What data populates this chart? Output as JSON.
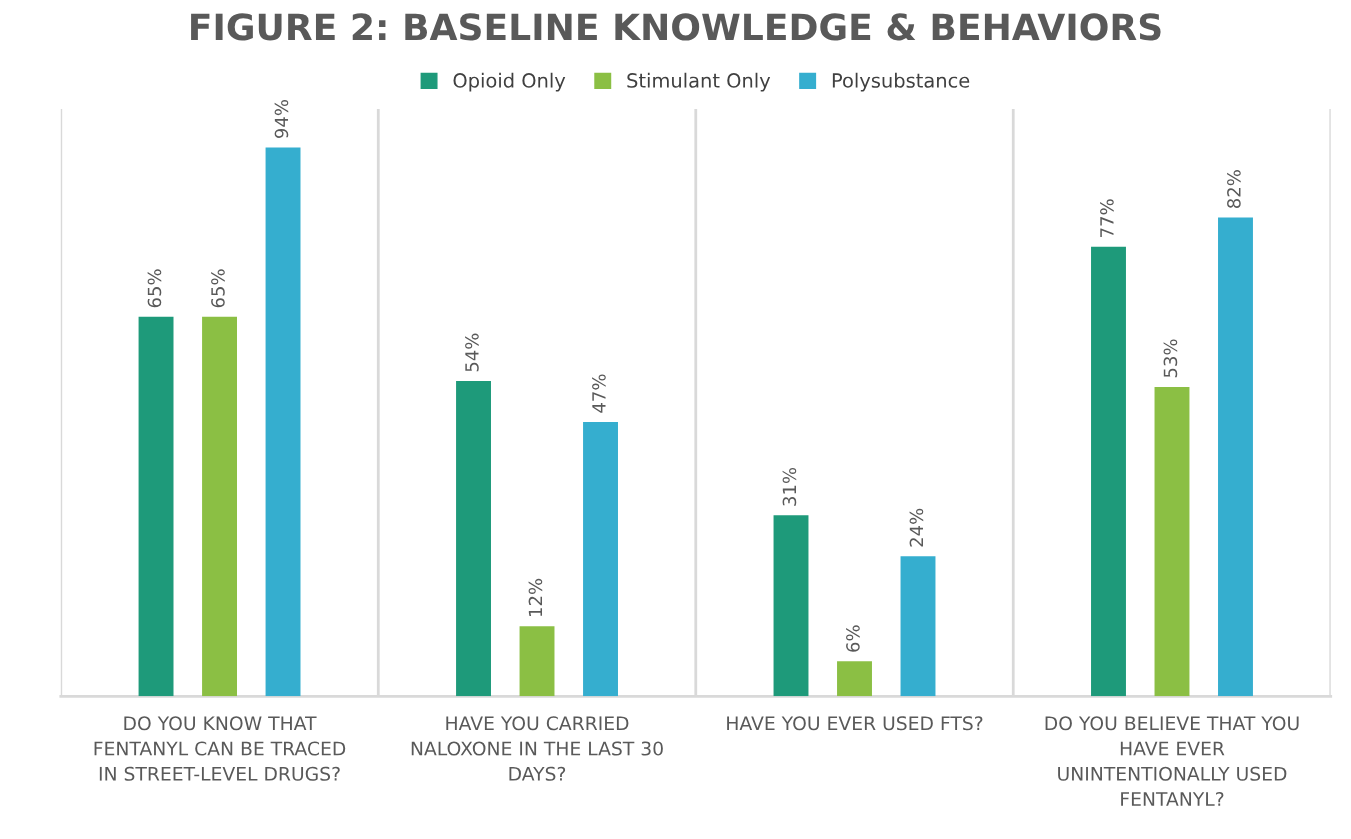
{
  "chart_data": {
    "type": "bar",
    "title": "FIGURE 2: BASELINE KNOWLEDGE & BEHAVIORS",
    "categories": [
      "DO YOU KNOW THAT FENTANYL CAN BE TRACED IN STREET-LEVEL DRUGS?",
      "HAVE YOU CARRIED NALOXONE IN THE LAST 30 DAYS?",
      "HAVE YOU EVER USED FTS?",
      "DO YOU BELIEVE THAT YOU HAVE EVER UNINTENTIONALLY USED FENTANYL?"
    ],
    "series": [
      {
        "name": "Opioid Only",
        "color": "#1e9a7a",
        "values": [
          65,
          54,
          31,
          77
        ],
        "value_labels": [
          "65%",
          "54%",
          "31%",
          "77%"
        ]
      },
      {
        "name": "Stimulant Only",
        "color": "#8bbf44",
        "values": [
          65,
          12,
          6,
          53
        ],
        "value_labels": [
          "65%",
          "12%",
          "6%",
          "53%"
        ]
      },
      {
        "name": "Polysubstance",
        "color": "#35aecf",
        "values": [
          94,
          47,
          24,
          82
        ],
        "value_labels": [
          "94%",
          "47%",
          "24%",
          "82%"
        ]
      }
    ],
    "legend": "top",
    "grid": "x"
  }
}
